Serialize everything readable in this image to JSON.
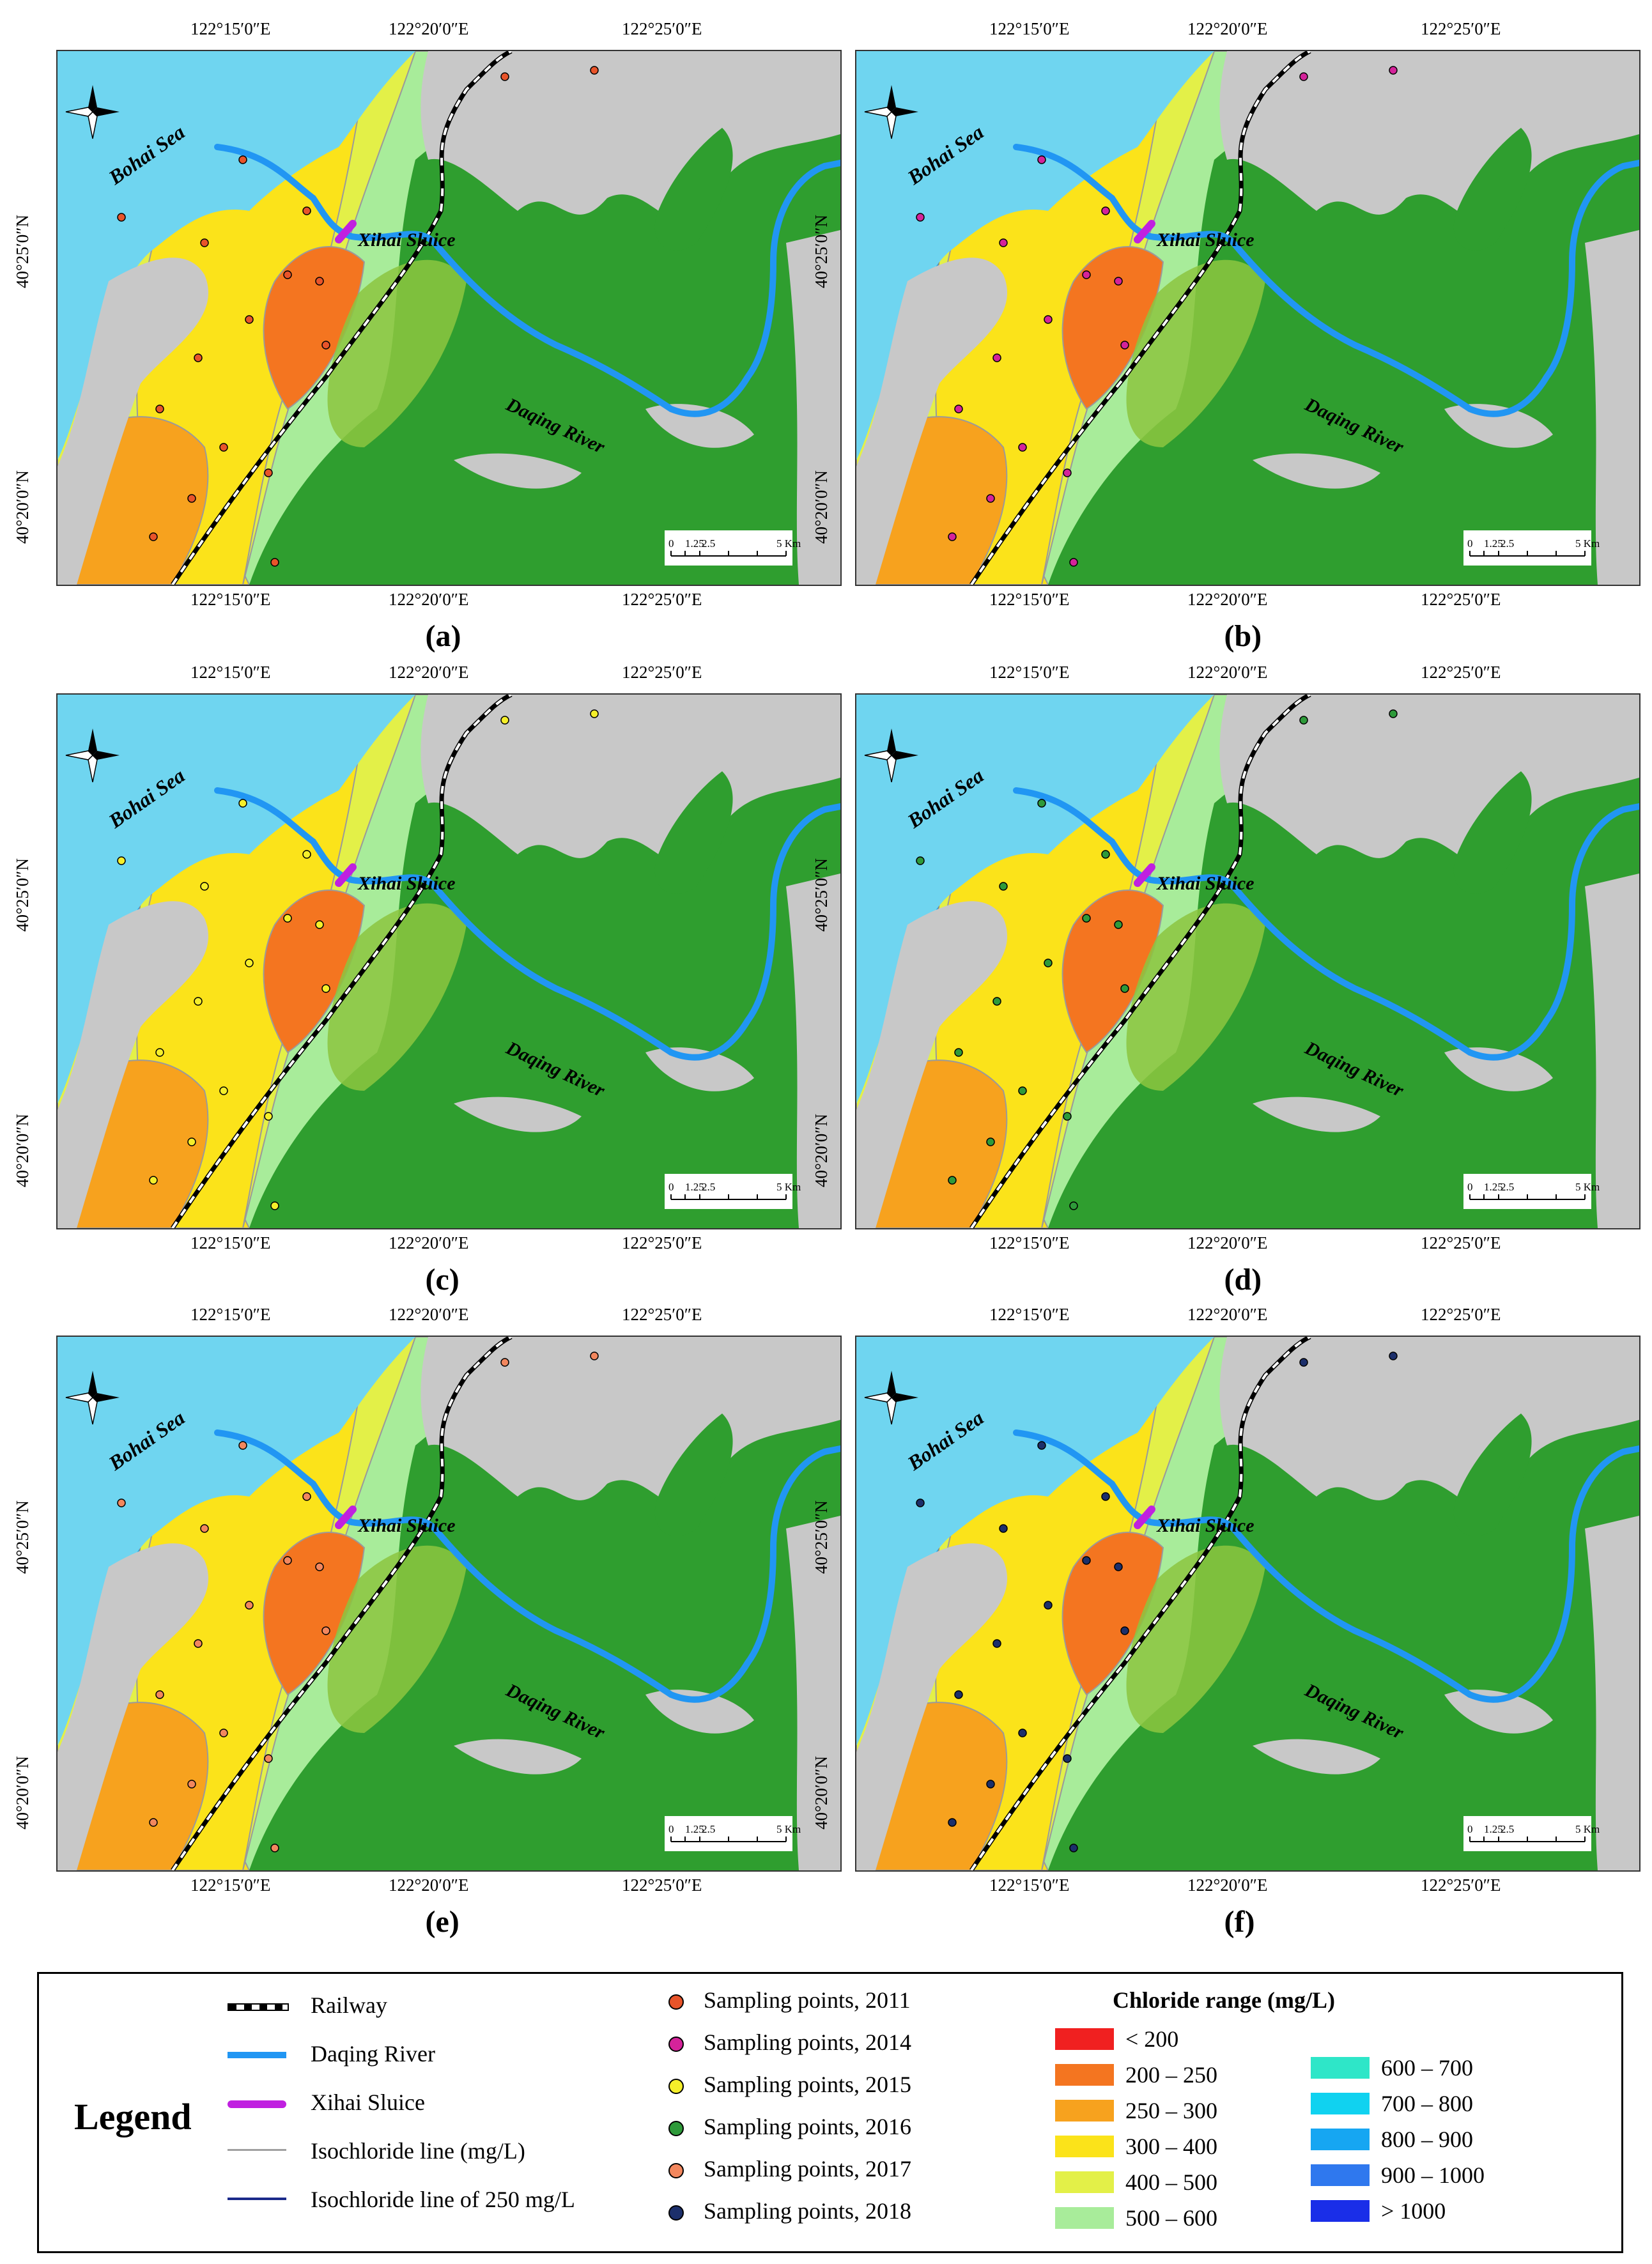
{
  "panels": [
    {
      "label": "(a)",
      "year": "2011",
      "point_color": "#e8542a"
    },
    {
      "label": "(b)",
      "year": "2014",
      "point_color": "#d4239a"
    },
    {
      "label": "(c)",
      "year": "2015",
      "point_color": "#f5ef2a"
    },
    {
      "label": "(d)",
      "year": "2016",
      "point_color": "#2e9a3a"
    },
    {
      "label": "(e)",
      "year": "2017",
      "point_color": "#f2875e"
    },
    {
      "label": "(f)",
      "year": "2018",
      "point_color": "#1c2f6b"
    }
  ],
  "map_labels": {
    "sea": "Bohai Sea",
    "sluice": "Xihai Sluice",
    "river": "Daqing River",
    "north": "N",
    "lon_top": [
      "122°15′0″E",
      "122°20′0″E",
      "122°25′0″E"
    ],
    "lon_bottom": [
      "122°15′0″E",
      "122°20′0″E",
      "122°25′0″E"
    ],
    "lat": [
      "40°25′0″N",
      "40°20′0″N"
    ],
    "scale_ticks": [
      "0",
      "1.25",
      "2.5",
      "5 Km"
    ]
  },
  "legend": {
    "title": "Legend",
    "lines": [
      {
        "label": "Railway",
        "symbol": "railway"
      },
      {
        "label": "Daqing River",
        "symbol": "river",
        "color": "#2196f3"
      },
      {
        "label": "Xihai Sluice",
        "symbol": "sluice",
        "color": "#c020e0"
      },
      {
        "label": "Isochloride line (mg/L)",
        "symbol": "isoline",
        "color": "#a0a0a0"
      },
      {
        "label": "Isochloride line of  250 mg/L",
        "symbol": "isoline250",
        "color": "#1a2a8a"
      }
    ],
    "points": [
      {
        "label": "Sampling points, 2011",
        "color": "#e8542a"
      },
      {
        "label": "Sampling points, 2014",
        "color": "#d4239a"
      },
      {
        "label": "Sampling points, 2015",
        "color": "#f5ef2a"
      },
      {
        "label": "Sampling points, 2016",
        "color": "#2e9a3a"
      },
      {
        "label": "Sampling points, 2017",
        "color": "#f2875e"
      },
      {
        "label": "Sampling points, 2018",
        "color": "#1c2f6b"
      }
    ],
    "range_title": "Chloride range (mg/L)",
    "ranges": [
      {
        "label": "< 200",
        "color": "#f02020"
      },
      {
        "label": "200 – 250",
        "color": "#f47520"
      },
      {
        "label": "250 – 300",
        "color": "#f7a21e"
      },
      {
        "label": "300 – 400",
        "color": "#fbe31a"
      },
      {
        "label": "400 – 500",
        "color": "#e3f048"
      },
      {
        "label": "500 – 600",
        "color": "#a8ec9a"
      },
      {
        "label": "600 – 700",
        "color": "#2ee6c8"
      },
      {
        "label": "700 – 800",
        "color": "#10d2f0"
      },
      {
        "label": "800 – 900",
        "color": "#16a6f2"
      },
      {
        "label": "900 – 1000",
        "color": "#2f78ee"
      },
      {
        "label": "> 1000",
        "color": "#1a2ee8"
      }
    ]
  },
  "colors": {
    "sea": "#6fd5f0",
    "land_gray": "#c8c8c8",
    "vegetation": "#2f9e2f",
    "vegetation_light": "#8cc63f",
    "river": "#2196f3",
    "sluice": "#c020e0"
  }
}
